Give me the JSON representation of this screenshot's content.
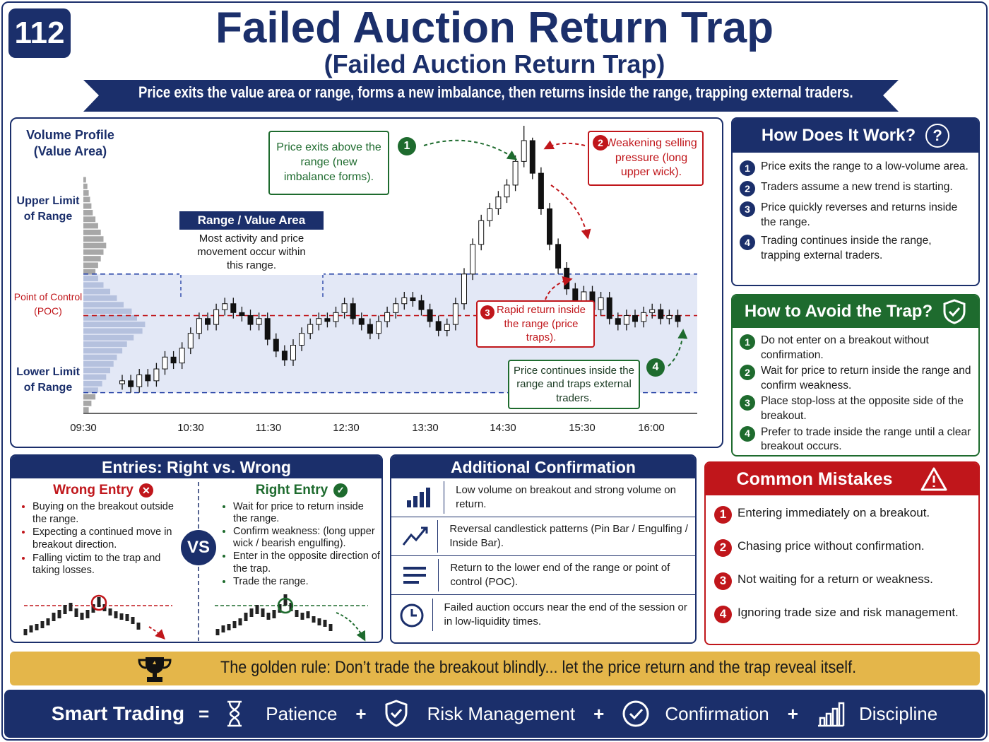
{
  "header": {
    "badge": "112",
    "title": "Failed Auction Return Trap",
    "subtitle": "(Failed Auction Return Trap)",
    "banner": "Price exits the value area or range, forms a new imbalance, then returns inside the range, trapping external traders."
  },
  "chart": {
    "type": "candlestick",
    "profile_title": "Volume Profile (Value Area)",
    "upper_label": "Upper Limit of Range",
    "poc_label": "Point of Control (POC)",
    "lower_label": "Lower Limit of Range",
    "range_box": {
      "title": "Range / Value Area",
      "text": "Most activity and price movement occur within this range."
    },
    "callouts": [
      {
        "num": "1",
        "text": "Price exits above the range (new imbalance forms)."
      },
      {
        "num": "2",
        "text": "Weakening selling pressure (long upper wick)."
      },
      {
        "num": "3",
        "text": "Rapid return inside the range (price traps)."
      },
      {
        "num": "4",
        "text": "Price continues inside the range and traps external traders."
      }
    ],
    "xticks": [
      "09:30",
      "10:30",
      "11:30",
      "12:30",
      "13:30",
      "14:30",
      "15:30",
      "16:00"
    ],
    "ylim": [
      3,
      100
    ],
    "upper_limit": 50,
    "poc": 36,
    "lower_limit": 10,
    "up_color": "#ffffff",
    "down_color": "#111111",
    "open": [
      13,
      14,
      12,
      16,
      14,
      18,
      22,
      20,
      25,
      30,
      35,
      33,
      38,
      40,
      37,
      36,
      33,
      35,
      28,
      24,
      21,
      26,
      30,
      33,
      35,
      34,
      37,
      40,
      35,
      33,
      30,
      34,
      37,
      40,
      42,
      41,
      38,
      34,
      31,
      33,
      40,
      50,
      60,
      68,
      72,
      76,
      80,
      88,
      95,
      84,
      72,
      60,
      52,
      45,
      40,
      44,
      38,
      42,
      35,
      33,
      36,
      34,
      37,
      38,
      35,
      36
    ],
    "high": [
      16,
      16,
      18,
      18,
      20,
      24,
      24,
      27,
      32,
      37,
      37,
      40,
      42,
      42,
      39,
      38,
      37,
      37,
      30,
      26,
      28,
      32,
      35,
      37,
      37,
      39,
      42,
      42,
      37,
      35,
      36,
      39,
      42,
      44,
      44,
      43,
      40,
      36,
      35,
      42,
      52,
      62,
      70,
      74,
      78,
      82,
      90,
      100,
      96,
      86,
      74,
      62,
      54,
      47,
      46,
      46,
      44,
      44,
      37,
      38,
      38,
      39,
      40,
      40,
      38,
      38
    ],
    "low": [
      11,
      10,
      10,
      12,
      12,
      16,
      18,
      18,
      23,
      28,
      31,
      31,
      36,
      35,
      34,
      31,
      31,
      26,
      22,
      19,
      19,
      24,
      28,
      31,
      32,
      32,
      35,
      33,
      31,
      28,
      28,
      32,
      35,
      38,
      39,
      36,
      32,
      29,
      29,
      31,
      38,
      48,
      58,
      66,
      70,
      74,
      78,
      86,
      82,
      70,
      58,
      50,
      43,
      38,
      38,
      36,
      36,
      33,
      31,
      31,
      32,
      32,
      35,
      33,
      33,
      32
    ],
    "close": [
      14,
      12,
      16,
      14,
      18,
      22,
      20,
      25,
      30,
      35,
      33,
      38,
      40,
      37,
      36,
      33,
      35,
      28,
      24,
      21,
      26,
      30,
      33,
      35,
      34,
      37,
      40,
      35,
      33,
      30,
      34,
      37,
      40,
      42,
      41,
      38,
      34,
      31,
      33,
      40,
      50,
      60,
      68,
      72,
      76,
      80,
      88,
      95,
      84,
      72,
      60,
      52,
      45,
      40,
      44,
      38,
      42,
      35,
      33,
      36,
      34,
      37,
      38,
      35,
      36,
      34
    ],
    "volume_profile": [
      4,
      6,
      8,
      10,
      12,
      14,
      18,
      22,
      26,
      30,
      34,
      30,
      26,
      22,
      18,
      22,
      30,
      40,
      50,
      60,
      72,
      80,
      92,
      88,
      75,
      65,
      58,
      50,
      45,
      40,
      34,
      28,
      22,
      18,
      12,
      8
    ]
  },
  "how": {
    "title": "How Does It Work?",
    "steps": [
      {
        "num": "1",
        "text": "Price exits the range to a low-volume area."
      },
      {
        "num": "2",
        "text": "Traders assume a new trend is starting."
      },
      {
        "num": "3",
        "text": "Price quickly reverses and returns inside the range."
      },
      {
        "num": "4",
        "text": "Trading continues inside the range, trapping external traders."
      }
    ]
  },
  "avoid": {
    "title": "How to Avoid the Trap?",
    "steps": [
      {
        "num": "1",
        "text": "Do not enter on a breakout without confirmation."
      },
      {
        "num": "2",
        "text": "Wait for price to return inside the range and confirm weakness."
      },
      {
        "num": "3",
        "text": "Place stop-loss at the opposite side of the breakout."
      },
      {
        "num": "4",
        "text": "Prefer to trade inside the range until a clear breakout occurs."
      }
    ]
  },
  "entries": {
    "title": "Entries: Right vs. Wrong",
    "vs": "VS",
    "wrong": {
      "title": "Wrong Entry",
      "items": [
        "Buying on the breakout outside the range.",
        "Expecting a continued move in breakout direction.",
        "Falling victim to the trap and taking losses."
      ]
    },
    "right": {
      "title": "Right Entry",
      "items": [
        "Wait for price to return inside the range.",
        "Confirm weakness: (long upper wick / bearish engulfing).",
        "Enter in the opposite direction of the trap.",
        "Trade the range."
      ]
    }
  },
  "confirm": {
    "title": "Additional Confirmation",
    "items": [
      "Low volume on breakout and strong volume on return.",
      "Reversal candlestick patterns (Pin Bar / Engulfing / Inside Bar).",
      "Return to the lower end of the range or point of control (POC).",
      "Failed auction occurs near the end of the session or in low-liquidity times."
    ]
  },
  "mistakes": {
    "title": "Common Mistakes",
    "items": [
      {
        "num": "1",
        "text": "Entering immediately on a breakout."
      },
      {
        "num": "2",
        "text": "Chasing price without confirmation."
      },
      {
        "num": "3",
        "text": "Not waiting for a return or weakness."
      },
      {
        "num": "4",
        "text": "Ignoring trade size and risk management."
      }
    ]
  },
  "golden": "The golden rule: Don’t trade the breakout blindly... let the price return and the trap reveal itself.",
  "footer": {
    "lead": "Smart Trading",
    "eq": "=",
    "plus": "+",
    "items": [
      "Patience",
      "Risk Management",
      "Confirmation",
      "Discipline"
    ]
  }
}
